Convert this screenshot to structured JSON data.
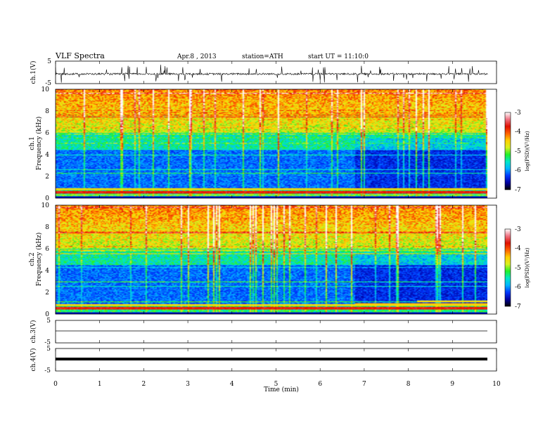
{
  "header": {
    "title": "VLF  Spectra",
    "date": "Apr.8  , 2013",
    "station": "station=ATH",
    "start": "start  UT  =   11:10:0"
  },
  "chart_data": [
    {
      "type": "line",
      "name": "ch1-waveform",
      "ylabel": "ch.1(V)",
      "ylim": [
        -5,
        5
      ],
      "yticks": [
        "5",
        "-5"
      ],
      "xlim": [
        0,
        10
      ],
      "data_end_min": 9.8
    },
    {
      "type": "heatmap",
      "name": "ch1-spectrogram",
      "ylabel_channel": "ch.1",
      "ylabel": "Frequency  (kHz)",
      "ylim": [
        0,
        10
      ],
      "yticks": [
        "0",
        "2",
        "4",
        "6",
        "8",
        "10"
      ],
      "colorbar": {
        "label": "log(PSD)(V²/Hz)",
        "range": [
          -7,
          -3
        ],
        "ticks": [
          "-3",
          "-4",
          "-5",
          "-6",
          "-7"
        ]
      },
      "regime_change_min": 6.8
    },
    {
      "type": "heatmap",
      "name": "ch2-spectrogram",
      "ylabel_channel": "ch.2",
      "ylabel": "Frequency  (kHz)",
      "ylim": [
        0,
        10
      ],
      "yticks": [
        "0",
        "2",
        "4",
        "6",
        "8",
        "10"
      ],
      "colorbar": {
        "label": "log(PSD)(V²/Hz)",
        "range": [
          -7,
          -3
        ],
        "ticks": [
          "-3",
          "-4",
          "-5",
          "-6",
          "-7"
        ]
      },
      "regime_change_min": 6.8,
      "band_step_min": 8.2
    },
    {
      "type": "line",
      "name": "ch3-waveform",
      "ylabel": "ch.3(V)",
      "ylim": [
        -5,
        5
      ],
      "yticks": [
        "5",
        "-5"
      ]
    },
    {
      "type": "line",
      "name": "ch4-waveform",
      "ylabel": "ch.4(V)",
      "ylim": [
        -5,
        5
      ],
      "yticks": [
        "5",
        "-5"
      ]
    }
  ],
  "xaxis": {
    "label": "Time  (min)",
    "range": [
      0,
      10
    ],
    "ticks": [
      "0",
      "1",
      "2",
      "3",
      "4",
      "5",
      "6",
      "7",
      "8",
      "9",
      "10"
    ]
  },
  "colormap": [
    "#000000",
    "#0000a0",
    "#0038ff",
    "#00b4ff",
    "#00e8c8",
    "#22f028",
    "#d8f020",
    "#ffd000",
    "#ff6000",
    "#e01000",
    "#f07080",
    "#ffffff"
  ]
}
